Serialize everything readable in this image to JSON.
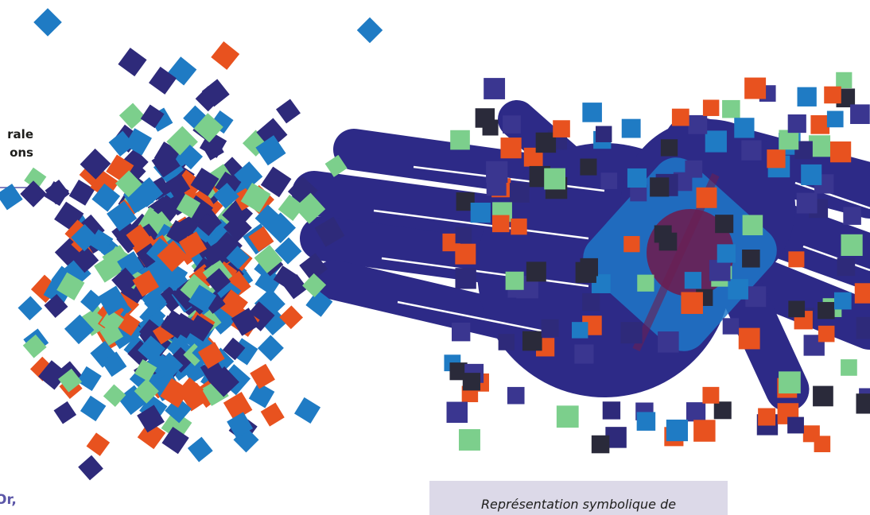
{
  "heading_fragment": [
    "rale",
    "ons"
  ],
  "body_fragment": "Or,",
  "figure": {
    "caption": "Représentation symbolique de"
  }
}
